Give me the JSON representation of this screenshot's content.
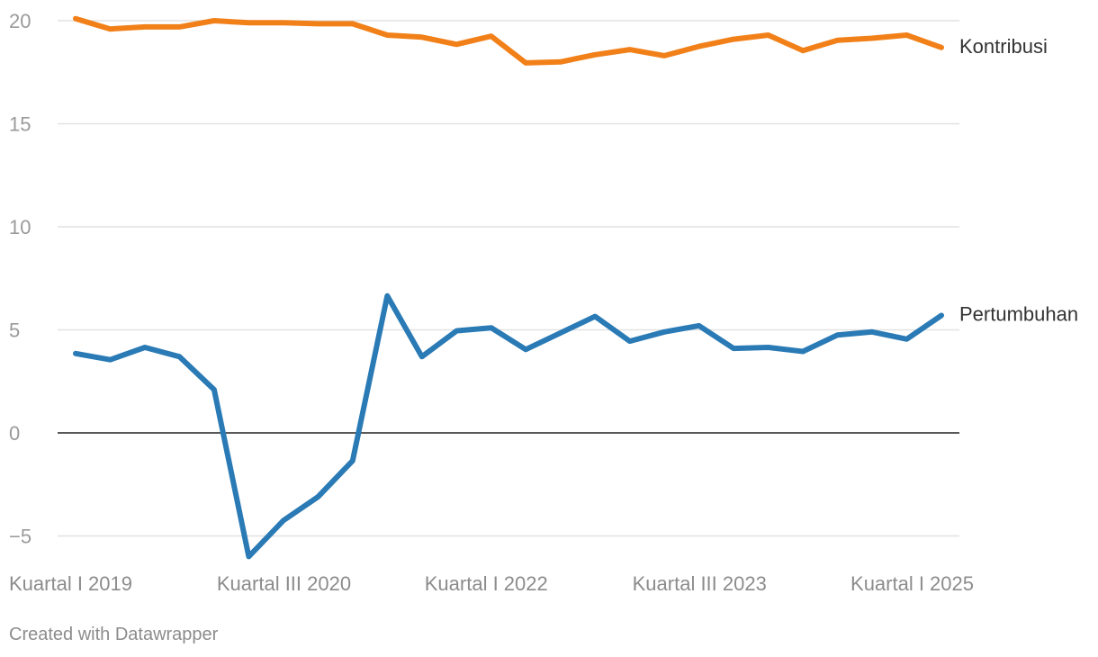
{
  "chart_data": {
    "type": "line",
    "title": "",
    "xlabel": "",
    "ylabel": "",
    "ylim": [
      -6,
      20.3
    ],
    "yticks": [
      20,
      15,
      10,
      5,
      0,
      -5
    ],
    "ytick_labels": [
      "20",
      "15",
      "10",
      "5",
      "0",
      "−5"
    ],
    "x_count": 26,
    "xtick_labels": [
      {
        "index": 0,
        "label": "Kuartal I 2019"
      },
      {
        "index": 6,
        "label": "Kuartal III 2020"
      },
      {
        "index": 12,
        "label": "Kuartal I 2022"
      },
      {
        "index": 18,
        "label": "Kuartal III 2023"
      },
      {
        "index": 24,
        "label": "Kuartal I 2025"
      }
    ],
    "grid": true,
    "series": [
      {
        "name": "Kontribusi",
        "color": "#f28019",
        "values": [
          20.1,
          19.6,
          19.7,
          19.7,
          20.0,
          19.9,
          19.9,
          19.85,
          19.85,
          19.3,
          19.2,
          18.85,
          19.25,
          17.95,
          18.0,
          18.35,
          18.6,
          18.3,
          18.75,
          19.1,
          19.3,
          18.55,
          19.05,
          19.15,
          19.3,
          18.7
        ]
      },
      {
        "name": "Pertumbuhan",
        "color": "#2a7ab5",
        "values": [
          3.85,
          3.55,
          4.15,
          3.7,
          2.1,
          -6.0,
          -4.25,
          -3.1,
          -1.35,
          6.65,
          3.7,
          4.95,
          5.1,
          4.05,
          4.85,
          5.65,
          4.45,
          4.9,
          5.2,
          4.1,
          4.15,
          3.95,
          4.75,
          4.9,
          4.55,
          5.7
        ]
      }
    ]
  },
  "footer": {
    "credit": "Created with Datawrapper"
  }
}
